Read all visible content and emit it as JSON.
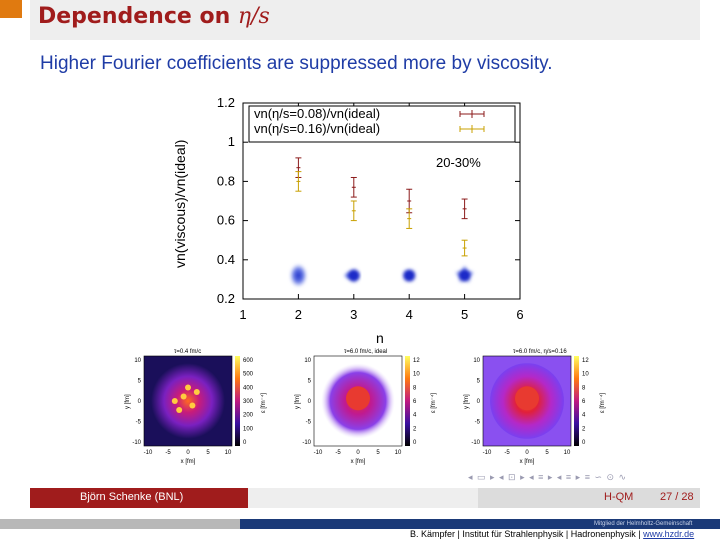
{
  "slide": {
    "title_prefix": "Dependence on ",
    "title_math": "η/s",
    "subtitle": "Higher Fourier coefficients are suppressed more by viscosity."
  },
  "chart_data": [
    {
      "type": "scatter",
      "xlabel": "n",
      "ylabel": "vn(viscous)/vn(ideal)",
      "xlim": [
        1,
        6
      ],
      "ylim": [
        0.2,
        1.2
      ],
      "x_ticks": [
        "1",
        "2",
        "3",
        "4",
        "5",
        "6"
      ],
      "y_ticks": [
        "0.2",
        "0.4",
        "0.6",
        "0.8",
        "1",
        "1.2"
      ],
      "annotation": "20-30%",
      "legend_position": "top-left",
      "series": [
        {
          "name": "vn(η/s=0.08)/vn(ideal)",
          "color": "#8b1a1a",
          "points": [
            {
              "x": 2,
              "y": 0.87,
              "err": 0.05
            },
            {
              "x": 3,
              "y": 0.77,
              "err": 0.05
            },
            {
              "x": 4,
              "y": 0.7,
              "err": 0.06
            },
            {
              "x": 5,
              "y": 0.66,
              "err": 0.05
            }
          ]
        },
        {
          "name": "vn(η/s=0.16)/vn(ideal)",
          "color": "#c8a000",
          "points": [
            {
              "x": 2,
              "y": 0.8,
              "err": 0.05
            },
            {
              "x": 3,
              "y": 0.65,
              "err": 0.05
            },
            {
              "x": 4,
              "y": 0.61,
              "err": 0.05
            },
            {
              "x": 5,
              "y": 0.46,
              "err": 0.04
            }
          ]
        }
      ],
      "shape_markers": [
        {
          "x": 2,
          "shape": "ellipse",
          "y": 0.32
        },
        {
          "x": 3,
          "shape": "triangle",
          "y": 0.32
        },
        {
          "x": 4,
          "shape": "square",
          "y": 0.32
        },
        {
          "x": 5,
          "shape": "pentagon",
          "y": 0.32
        }
      ]
    },
    {
      "type": "heatmap",
      "title": "τ=0.4 fm/c",
      "xlabel": "x [fm]",
      "ylabel": "y [fm]",
      "colorbar_label": "ε [fm⁻⁴]",
      "x_ticks": [
        "-10",
        "-5",
        "0",
        "5",
        "10"
      ],
      "y_ticks": [
        "10",
        "5",
        "0",
        "-5",
        "-10"
      ],
      "colorbar_ticks": [
        "600",
        "500",
        "400",
        "300",
        "200",
        "100",
        "0"
      ]
    },
    {
      "type": "heatmap",
      "title": "τ=6.0 fm/c, ideal",
      "xlabel": "x [fm]",
      "ylabel": "y [fm]",
      "colorbar_label": "ε [fm⁻⁴]",
      "x_ticks": [
        "-10",
        "-5",
        "0",
        "5",
        "10"
      ],
      "y_ticks": [
        "10",
        "5",
        "0",
        "-5",
        "-10"
      ],
      "colorbar_ticks": [
        "12",
        "10",
        "8",
        "6",
        "4",
        "2",
        "0"
      ]
    },
    {
      "type": "heatmap",
      "title": "τ=6.0 fm/c, η/s=0.16",
      "xlabel": "x [fm]",
      "ylabel": "y [fm]",
      "colorbar_label": "ε [fm⁻⁴]",
      "x_ticks": [
        "-10",
        "-5",
        "0",
        "5",
        "10"
      ],
      "y_ticks": [
        "10",
        "5",
        "0",
        "-5",
        "-10"
      ],
      "colorbar_ticks": [
        "12",
        "10",
        "8",
        "6",
        "4",
        "2",
        "0"
      ]
    }
  ],
  "footer": {
    "author": "Björn Schenke  (BNL)",
    "conference": "H-QM",
    "page": "27 / 28",
    "nav_icons": "◂ ▭ ▸  ◂ ⊡ ▸  ◂ ≡ ▸  ◂ ≡ ▸  ≡  ∽ ⊙ ∿"
  },
  "institute": {
    "helmholtz": "Mitglied der Helmholtz-Gemeinschaft",
    "text": "B. Kämpfer | Institut für Strahlenphysik | Hadronenphysik | ",
    "url": "www.hzdr.de"
  }
}
